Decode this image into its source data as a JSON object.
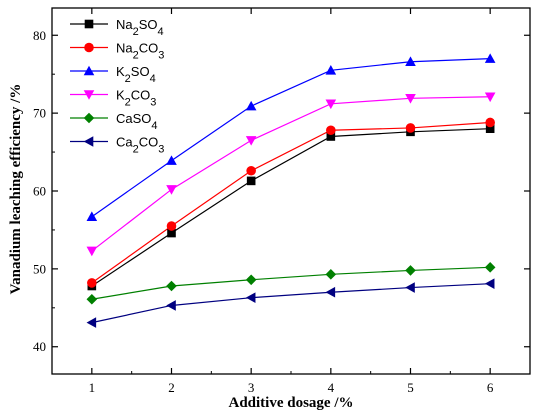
{
  "chart_data": {
    "type": "line",
    "title": "",
    "xlabel": "Additive dosage /%",
    "ylabel": "Vanadium leaching efficiency /%",
    "x": [
      1,
      2,
      3,
      4,
      5,
      6
    ],
    "xlim": [
      0.5,
      6.5
    ],
    "ylim": [
      36.5,
      83.5
    ],
    "xticks": [
      "1",
      "2",
      "3",
      "4",
      "5",
      "6"
    ],
    "yticks": [
      "40",
      "50",
      "60",
      "70",
      "80"
    ],
    "yticks_values": [
      40,
      50,
      60,
      70,
      80
    ],
    "grid": false,
    "legend_position": "top-left",
    "series": [
      {
        "name_main": "Na",
        "name_sub1": "2",
        "name_mid": "SO",
        "name_sub2": "4",
        "color": "#000000",
        "marker": "square",
        "values": [
          47.8,
          54.6,
          61.3,
          67.0,
          67.6,
          68.0
        ]
      },
      {
        "name_main": "Na",
        "name_sub1": "2",
        "name_mid": "CO",
        "name_sub2": "3",
        "color": "#ff0000",
        "marker": "circle",
        "values": [
          48.2,
          55.5,
          62.6,
          67.8,
          68.1,
          68.8
        ]
      },
      {
        "name_main": "K",
        "name_sub1": "2",
        "name_mid": "SO",
        "name_sub2": "4",
        "color": "#0000ff",
        "marker": "triangle-up",
        "values": [
          56.7,
          63.9,
          70.9,
          75.5,
          76.6,
          77.0
        ]
      },
      {
        "name_main": "K",
        "name_sub1": "2",
        "name_mid": "CO",
        "name_sub2": "3",
        "color": "#ff00ff",
        "marker": "triangle-down",
        "values": [
          52.3,
          60.2,
          66.5,
          71.2,
          71.9,
          72.1
        ]
      },
      {
        "name_main": "CaSO",
        "name_sub1": "",
        "name_mid": "",
        "name_sub2": "4",
        "color": "#008000",
        "marker": "diamond",
        "values": [
          46.1,
          47.8,
          48.6,
          49.3,
          49.8,
          50.2
        ]
      },
      {
        "name_main": "Ca",
        "name_sub1": "2",
        "name_mid": "CO",
        "name_sub2": "3",
        "color": "#000080",
        "marker": "triangle-left",
        "values": [
          43.1,
          45.3,
          46.3,
          47.0,
          47.6,
          48.1
        ]
      }
    ]
  }
}
